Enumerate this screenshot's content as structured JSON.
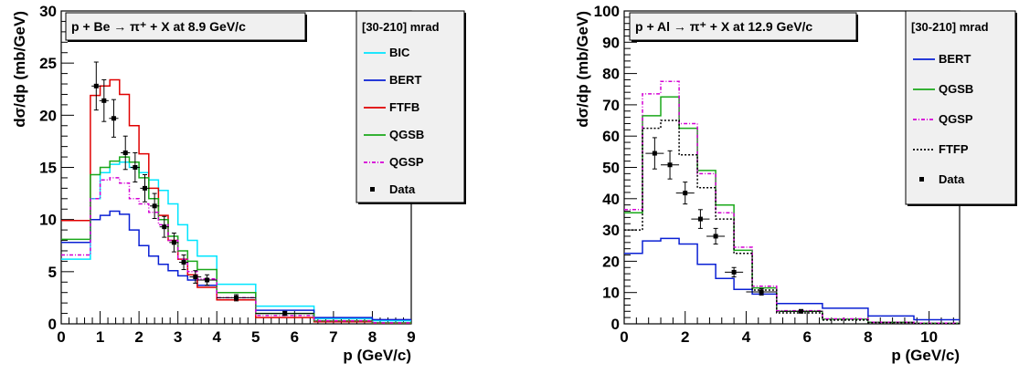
{
  "chart_data": [
    {
      "type": "line",
      "title": "p + Be → π⁺ + X at 8.9 GeV/c",
      "xlabel": "p (GeV/c)",
      "ylabel": "dσ/dp (mb/GeV)",
      "xlim": [
        0,
        9
      ],
      "ylim": [
        0,
        30
      ],
      "x_ticks": [
        "0",
        "1",
        "2",
        "3",
        "4",
        "5",
        "6",
        "7",
        "8",
        "9"
      ],
      "y_ticks": [
        "0",
        "5",
        "10",
        "15",
        "20",
        "25",
        "30"
      ],
      "legend_title": "[30-210] mrad",
      "legend_position": "top-right",
      "grid": false,
      "bin_edges": [
        0,
        0.75,
        1.0,
        1.25,
        1.5,
        1.75,
        2.0,
        2.25,
        2.5,
        2.75,
        3.0,
        3.25,
        3.5,
        4.0,
        5.0,
        6.5,
        8.0,
        9.0
      ],
      "series": [
        {
          "name": "BIC",
          "color": "#00e5ff",
          "dash": "",
          "values": [
            6.2,
            12.0,
            14.5,
            15.3,
            15.5,
            15.0,
            14.5,
            13.8,
            12.8,
            11.5,
            9.5,
            8.0,
            6.5,
            3.8,
            1.7,
            0.5,
            0.3
          ]
        },
        {
          "name": "BERT",
          "color": "#0a20d4",
          "dash": "",
          "values": [
            7.8,
            10.0,
            10.4,
            10.8,
            10.5,
            9.0,
            7.5,
            6.5,
            5.7,
            5.1,
            4.6,
            4.2,
            3.7,
            3.0,
            1.3,
            0.6,
            0.4
          ]
        },
        {
          "name": "FTFB",
          "color": "#e00000",
          "dash": "",
          "values": [
            9.9,
            21.9,
            22.8,
            23.4,
            22.0,
            19.0,
            16.3,
            13.0,
            10.4,
            8.0,
            6.2,
            4.7,
            3.5,
            2.3,
            0.6,
            0.2,
            0.0
          ]
        },
        {
          "name": "QGSB",
          "color": "#1aa81a",
          "dash": "",
          "values": [
            8.1,
            14.3,
            15.0,
            15.6,
            16.0,
            15.5,
            14.0,
            12.0,
            10.0,
            8.4,
            7.0,
            6.0,
            5.2,
            3.0,
            1.0,
            0.3,
            0.1
          ]
        },
        {
          "name": "QGSP",
          "color": "#d400d4",
          "dash": "4,2,1,2",
          "values": [
            6.6,
            12.0,
            13.8,
            14.0,
            13.5,
            12.0,
            11.5,
            10.7,
            9.5,
            8.0,
            6.2,
            5.0,
            4.3,
            2.5,
            0.8,
            0.3,
            0.1
          ]
        }
      ],
      "data_points": {
        "name": "Data",
        "x": [
          0.9,
          1.1,
          1.35,
          1.65,
          1.9,
          2.15,
          2.4,
          2.65,
          2.9,
          3.15,
          3.45,
          3.75,
          4.5,
          5.75
        ],
        "y": [
          22.8,
          21.4,
          19.7,
          16.4,
          15.0,
          13.0,
          11.3,
          9.3,
          7.8,
          5.9,
          4.5,
          4.2,
          2.5,
          1.0
        ],
        "xerr": [
          0.12,
          0.12,
          0.12,
          0.12,
          0.12,
          0.12,
          0.12,
          0.12,
          0.12,
          0.12,
          0.15,
          0.25,
          0.5,
          0.75
        ],
        "yerr": [
          2.3,
          2.0,
          1.8,
          1.6,
          1.4,
          1.3,
          1.2,
          1.0,
          0.9,
          0.7,
          0.6,
          0.5,
          0.3,
          0.2
        ]
      }
    },
    {
      "type": "line",
      "title": "p + Al → π⁺ + X at 12.9 GeV/c",
      "xlabel": "p (GeV/c)",
      "ylabel": "dσ/dp (mb/GeV)",
      "xlim": [
        0,
        11
      ],
      "ylim": [
        0,
        100
      ],
      "x_ticks": [
        "0",
        "2",
        "4",
        "6",
        "8",
        "10"
      ],
      "y_ticks": [
        "0",
        "10",
        "20",
        "30",
        "40",
        "50",
        "60",
        "70",
        "80",
        "90",
        "100"
      ],
      "legend_title": "[30-210] mrad",
      "legend_position": "top-right",
      "grid": false,
      "bin_edges": [
        0,
        0.6,
        1.2,
        1.8,
        2.4,
        3.0,
        3.6,
        4.2,
        5.0,
        6.5,
        8.0,
        9.5,
        11.0
      ],
      "series": [
        {
          "name": "BERT",
          "color": "#0a20d4",
          "dash": "",
          "values": [
            22.5,
            26.5,
            27.3,
            25.5,
            19.0,
            14.5,
            11.0,
            9.5,
            6.5,
            5.0,
            2.5,
            1.3
          ]
        },
        {
          "name": "QGSB",
          "color": "#1aa81a",
          "dash": "",
          "values": [
            35.5,
            66.5,
            72.5,
            62.5,
            49.0,
            38.0,
            23.5,
            11.5,
            4.0,
            1.5,
            0.5,
            0.2
          ]
        },
        {
          "name": "QGSP",
          "color": "#d400d4",
          "dash": "4,2,1,2",
          "values": [
            36.5,
            73.5,
            77.5,
            64.0,
            48.0,
            35.5,
            24.5,
            12.0,
            4.2,
            1.6,
            0.5,
            0.2
          ]
        },
        {
          "name": "FTFP",
          "color": "#000000",
          "dash": "2,2",
          "values": [
            30.0,
            62.5,
            65.0,
            54.0,
            43.5,
            33.5,
            22.5,
            10.8,
            3.5,
            1.2,
            0.4,
            0.1
          ]
        }
      ],
      "data_points": {
        "name": "Data",
        "x": [
          1.0,
          1.5,
          2.0,
          2.5,
          3.0,
          3.6,
          4.5,
          5.8
        ],
        "y": [
          54.5,
          50.8,
          41.8,
          33.5,
          28.0,
          16.5,
          10.2,
          4.0
        ],
        "xerr": [
          0.3,
          0.3,
          0.3,
          0.3,
          0.3,
          0.3,
          0.5,
          0.7
        ],
        "yerr": [
          5.0,
          4.5,
          3.5,
          3.0,
          2.5,
          1.5,
          1.0,
          0.5
        ]
      }
    }
  ]
}
